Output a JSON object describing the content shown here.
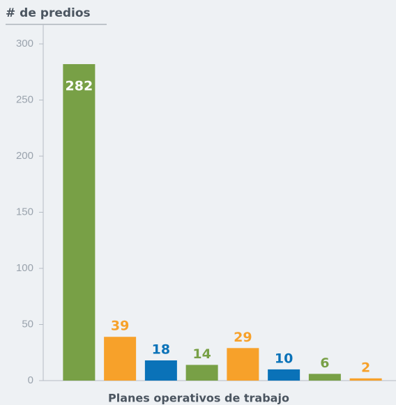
{
  "chart_data": {
    "type": "bar",
    "y_axis_title": "# de predios",
    "x_axis_title": "Planes operativos de trabajo",
    "categories": [
      null,
      null,
      null,
      null,
      null,
      null,
      null,
      null
    ],
    "values": [
      282,
      39,
      18,
      14,
      29,
      10,
      6,
      2
    ],
    "colors": [
      "#78a046",
      "#f7a12a",
      "#0a72b8",
      "#78a046",
      "#f7a12a",
      "#0a72b8",
      "#78a046",
      "#f7a12a"
    ],
    "ylim": [
      0,
      300
    ],
    "yticks": [
      0,
      50,
      100,
      150,
      200,
      250,
      300
    ],
    "grid": false
  }
}
